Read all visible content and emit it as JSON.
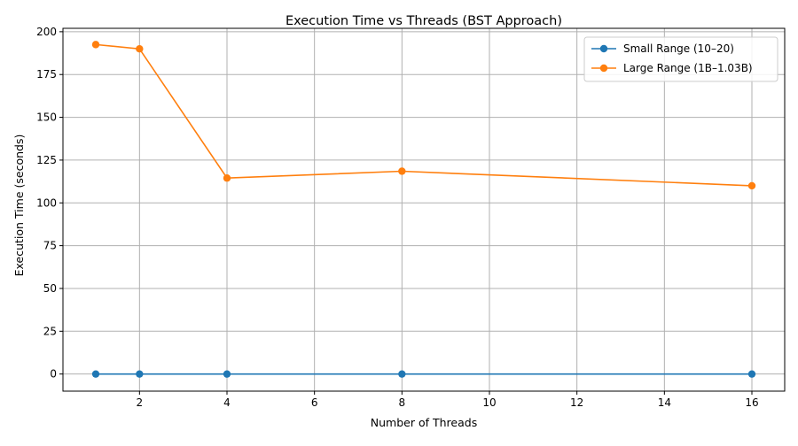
{
  "chart_data": {
    "type": "line",
    "title": "Execution Time vs Threads (BST Approach)",
    "xlabel": "Number of Threads",
    "ylabel": "Execution Time (seconds)",
    "x": [
      1,
      2,
      4,
      8,
      16
    ],
    "xlim": [
      0.25,
      16.75
    ],
    "ylim": [
      -10,
      202
    ],
    "xticks": [
      2,
      4,
      6,
      8,
      10,
      12,
      14,
      16
    ],
    "yticks": [
      0,
      25,
      50,
      75,
      100,
      125,
      150,
      175,
      200
    ],
    "grid": true,
    "legend_position": "top-right",
    "series": [
      {
        "name": "Small Range (10–20)",
        "color": "#1f77b4",
        "marker": "circle",
        "values": [
          0.0,
          0.0,
          0.0,
          0.0,
          0.0
        ]
      },
      {
        "name": "Large Range (1B–1.03B)",
        "color": "#ff7f0e",
        "marker": "circle",
        "values": [
          192.5,
          190.0,
          114.5,
          118.5,
          110.0
        ]
      }
    ]
  }
}
